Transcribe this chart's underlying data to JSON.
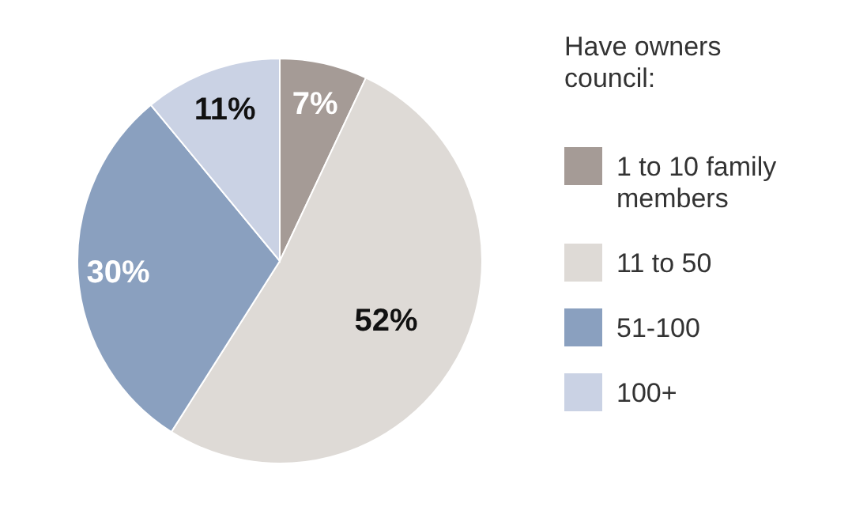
{
  "chart_data": {
    "type": "pie",
    "legend_title": "Have owners council:",
    "categories": [
      "1 to 10 family members",
      "11 to 50",
      "51-100",
      "100+"
    ],
    "values": [
      7,
      52,
      30,
      11
    ],
    "colors": [
      "#a59b96",
      "#dedad6",
      "#8aa0bf",
      "#cad2e4"
    ],
    "value_labels": [
      "7%",
      "52%",
      "30%",
      "11%"
    ],
    "legend": "right"
  }
}
